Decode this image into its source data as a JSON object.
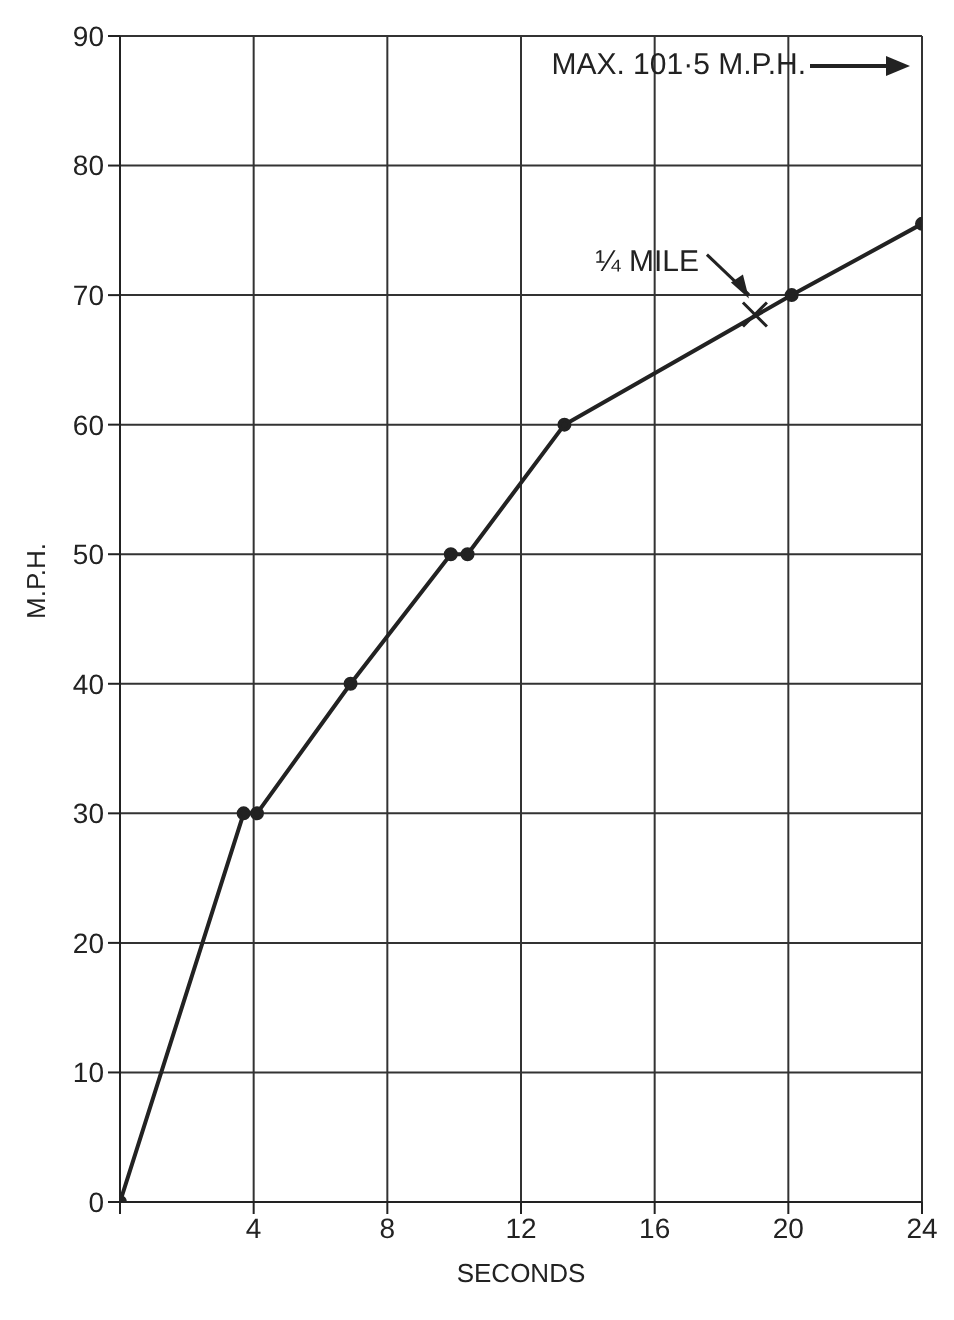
{
  "chart_data": {
    "type": "line",
    "xlabel": "SECONDS",
    "ylabel": "M.P.H.",
    "x": [
      0,
      3.7,
      4.1,
      6.9,
      9.9,
      10.4,
      13.3,
      20.1,
      24
    ],
    "series": [
      {
        "color": "#222222",
        "values": [
          0,
          30,
          30,
          40,
          50,
          50,
          60,
          70,
          75.5
        ]
      }
    ],
    "xlim": [
      0,
      24
    ],
    "xticks": [
      {
        "value": 0,
        "label": null
      },
      4,
      8,
      12,
      16,
      20,
      24
    ],
    "ylim": [
      0,
      90
    ],
    "yticks": [
      0,
      10,
      20,
      30,
      40,
      50,
      60,
      70,
      80,
      90
    ],
    "grid": true,
    "marker": "circle",
    "line_style": "solid",
    "annotations": [
      "MAX. 101·5 M.P.H.",
      {
        "text": "¼ MILE",
        "x": 19,
        "y": 68.5
      }
    ]
  }
}
